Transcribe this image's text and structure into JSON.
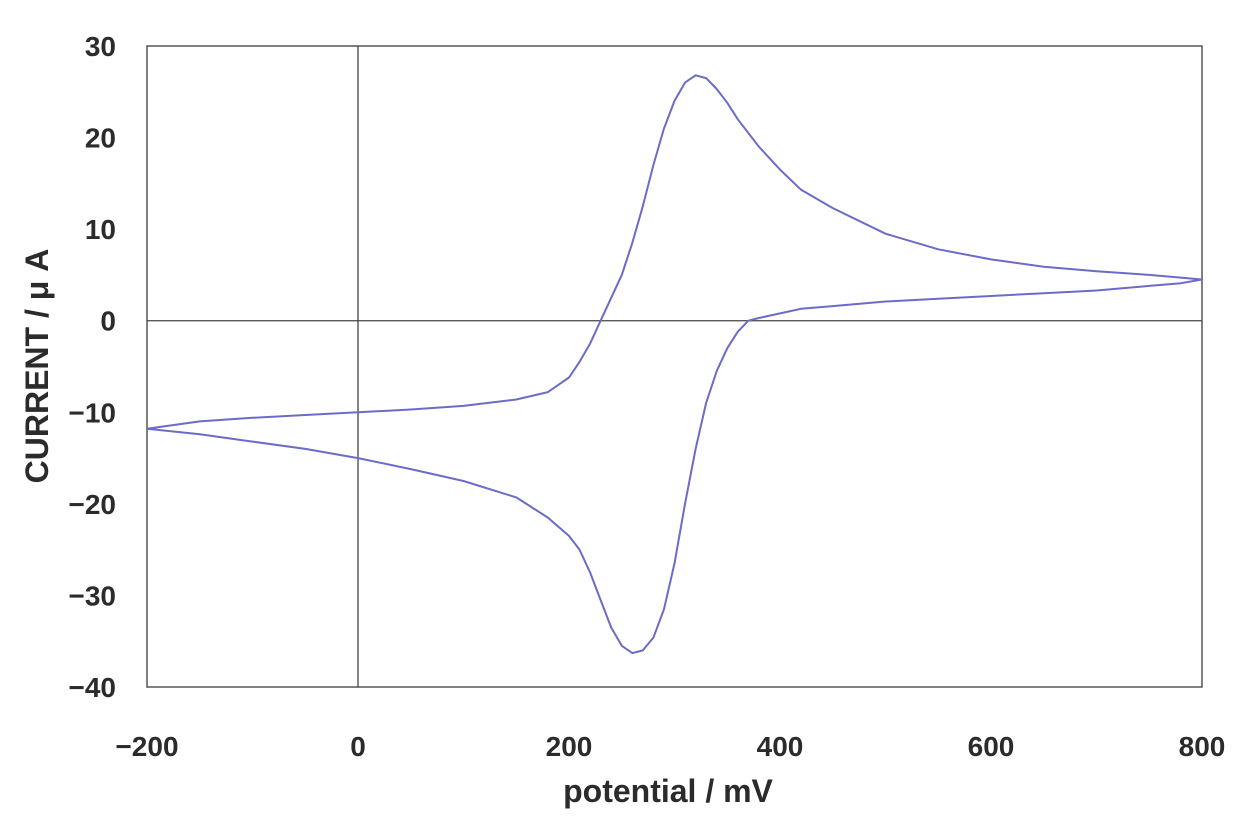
{
  "chart_data": {
    "type": "line",
    "title": "",
    "xlabel": "potential / mV",
    "ylabel": "CURRENT / μ A",
    "xlim": [
      -200,
      800
    ],
    "ylim": [
      -40,
      30
    ],
    "xticks": [
      "−200",
      "0",
      "200",
      "400",
      "600",
      "800"
    ],
    "yticks": [
      "30",
      "20",
      "10",
      "0",
      "−10",
      "−20",
      "−30",
      "−40"
    ],
    "grid": false,
    "legend": "none",
    "series": [
      {
        "color": "#6b6bc8",
        "x": [
          -200,
          -150,
          -100,
          -50,
          0,
          50,
          100,
          150,
          180,
          200,
          210,
          220,
          230,
          240,
          250,
          260,
          270,
          280,
          290,
          300,
          310,
          320,
          330,
          340,
          350,
          360,
          380,
          400,
          420,
          450,
          500,
          550,
          600,
          650,
          700,
          750,
          800,
          780,
          750,
          700,
          650,
          600,
          550,
          500,
          450,
          420,
          400,
          380,
          370,
          360,
          350,
          340,
          330,
          320,
          310,
          300,
          290,
          280,
          270,
          260,
          250,
          240,
          230,
          220,
          210,
          200,
          180,
          150,
          100,
          50,
          0,
          -50,
          -100,
          -150,
          -200
        ],
        "y": [
          -11.8,
          -11.0,
          -10.6,
          -10.3,
          -10.0,
          -9.7,
          -9.3,
          -8.6,
          -7.8,
          -6.2,
          -4.5,
          -2.5,
          0.0,
          2.5,
          5.0,
          8.5,
          12.5,
          17.0,
          21.0,
          24.0,
          26.0,
          26.8,
          26.5,
          25.3,
          23.8,
          22.0,
          19.0,
          16.5,
          14.3,
          12.3,
          9.5,
          7.8,
          6.7,
          5.9,
          5.4,
          5.0,
          4.5,
          4.1,
          3.8,
          3.3,
          3.0,
          2.7,
          2.4,
          2.1,
          1.6,
          1.3,
          0.8,
          0.3,
          0.0,
          -1.2,
          -3.0,
          -5.5,
          -9.0,
          -14.0,
          -20.0,
          -26.5,
          -31.5,
          -34.6,
          -36.0,
          -36.3,
          -35.5,
          -33.5,
          -30.5,
          -27.5,
          -25.0,
          -23.5,
          -21.5,
          -19.3,
          -17.5,
          -16.2,
          -15.0,
          -14.0,
          -13.2,
          -12.4,
          -11.8
        ]
      }
    ]
  }
}
